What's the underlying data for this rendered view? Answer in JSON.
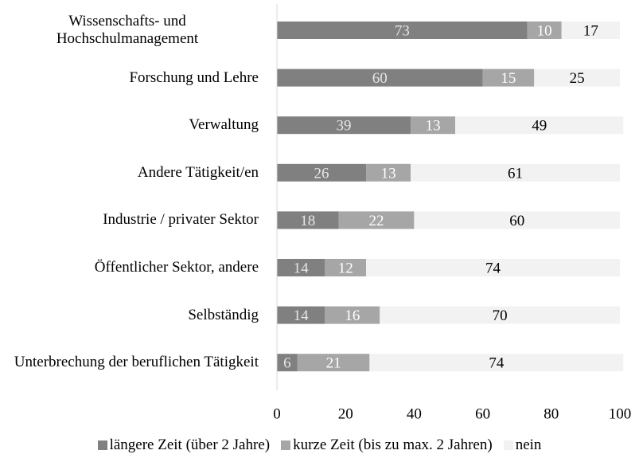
{
  "chart_data": {
    "type": "stacked_barh",
    "categories": [
      "Wissenschafts- und Hochschulmanagement",
      "Forschung und Lehre",
      "Verwaltung",
      "Andere Tätigkeit/en",
      "Industrie / privater Sektor",
      "Öffentlicher Sektor, andere",
      "Selbständig",
      "Unterbrechung der beruflichen Tätigkeit"
    ],
    "series": [
      {
        "name": "längere Zeit (über 2 Jahre)",
        "color": "#808080",
        "values": [
          73,
          60,
          39,
          26,
          18,
          14,
          14,
          6
        ]
      },
      {
        "name": "kurze Zeit (bis zu max. 2 Jahren)",
        "color": "#a6a6a6",
        "values": [
          10,
          15,
          13,
          13,
          22,
          12,
          16,
          21
        ]
      },
      {
        "name": "nein",
        "color": "#f2f2f2",
        "values": [
          17,
          25,
          49,
          61,
          60,
          74,
          70,
          74
        ]
      }
    ],
    "xlim": [
      0,
      100
    ],
    "xticks": [
      0,
      20,
      40,
      60,
      80,
      100
    ],
    "grid": false,
    "legend": "bottom"
  }
}
